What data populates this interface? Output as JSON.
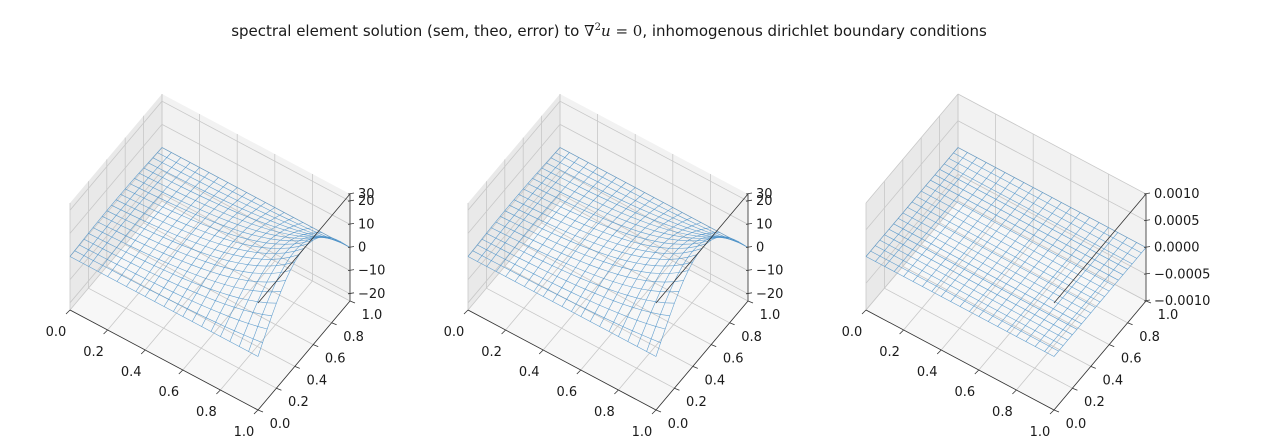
{
  "figure": {
    "title_parts": {
      "prefix": "spectral element solution (sem, theo, error) to ",
      "nabla": "∇",
      "power": "2",
      "var": "u",
      "equation_rest": " = 0",
      "suffix": ", inhomogenous dirichlet boundary conditions"
    }
  },
  "colors": {
    "surface": "#4a90c8",
    "pane_back": "#f2f2f2",
    "pane_side": "#e9e9e9",
    "pane_floor": "#f7f7f7",
    "grid": "#c8c8c8",
    "axis": "#333333"
  },
  "chart_data": [
    {
      "type": "wireframe",
      "panel": "sem",
      "function": "exp(pi*x)*sin(pi*y)",
      "x_ticks": [
        "0.0",
        "0.2",
        "0.4",
        "0.6",
        "0.8",
        "1.0"
      ],
      "y_ticks": [
        "0.0",
        "0.2",
        "0.4",
        "0.6",
        "0.8",
        "1.0"
      ],
      "z_ticks": [
        "−20",
        "−10",
        "0",
        "10",
        "20",
        "30"
      ],
      "xlim": [
        0,
        1
      ],
      "ylim": [
        0,
        1
      ],
      "zlim": [
        -23.1,
        23.1
      ],
      "grid": true
    },
    {
      "type": "wireframe",
      "panel": "theo",
      "function": "exp(pi*x)*sin(pi*y)",
      "x_ticks": [
        "0.0",
        "0.2",
        "0.4",
        "0.6",
        "0.8",
        "1.0"
      ],
      "y_ticks": [
        "0.0",
        "0.2",
        "0.4",
        "0.6",
        "0.8",
        "1.0"
      ],
      "z_ticks": [
        "−20",
        "−10",
        "0",
        "10",
        "20",
        "30"
      ],
      "xlim": [
        0,
        1
      ],
      "ylim": [
        0,
        1
      ],
      "zlim": [
        -23.1,
        23.1
      ],
      "grid": true
    },
    {
      "type": "wireframe",
      "panel": "error",
      "function": "0",
      "x_ticks": [
        "0.0",
        "0.2",
        "0.4",
        "0.6",
        "0.8",
        "1.0"
      ],
      "y_ticks": [
        "0.0",
        "0.2",
        "0.4",
        "0.6",
        "0.8",
        "1.0"
      ],
      "z_ticks": [
        "−0.0010",
        "−0.0005",
        "0.0000",
        "0.0005",
        "0.0010"
      ],
      "xlim": [
        0,
        1
      ],
      "ylim": [
        0,
        1
      ],
      "zlim": [
        -0.001,
        0.001
      ],
      "grid": true
    }
  ]
}
